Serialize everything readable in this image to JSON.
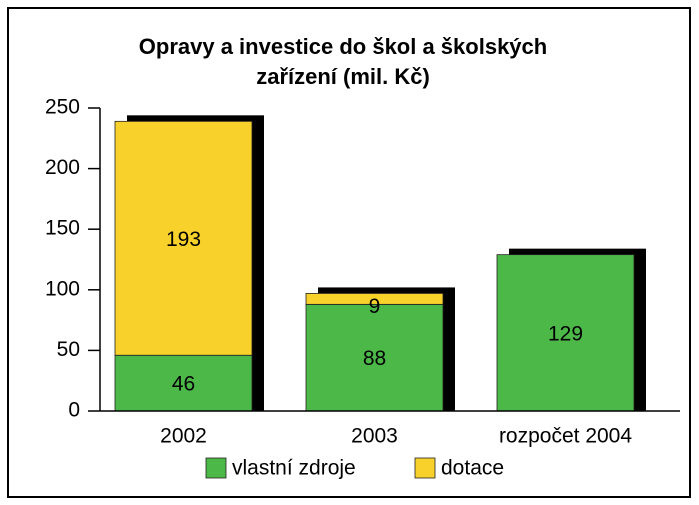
{
  "chart_data": {
    "type": "stacked_bar",
    "title": "Opravy a investice do škol a školských zařízení (mil. Kč)",
    "categories": [
      "2002",
      "2003",
      "rozpočet 2004"
    ],
    "series": [
      {
        "name": "vlastní zdroje",
        "color": "#4cb848",
        "values": [
          46,
          88,
          129
        ]
      },
      {
        "name": "dotace",
        "color": "#f9d12b",
        "values": [
          193,
          9,
          null
        ]
      }
    ],
    "ylim": [
      0,
      250
    ],
    "yticks": [
      0,
      50,
      100,
      150,
      200,
      250
    ]
  }
}
